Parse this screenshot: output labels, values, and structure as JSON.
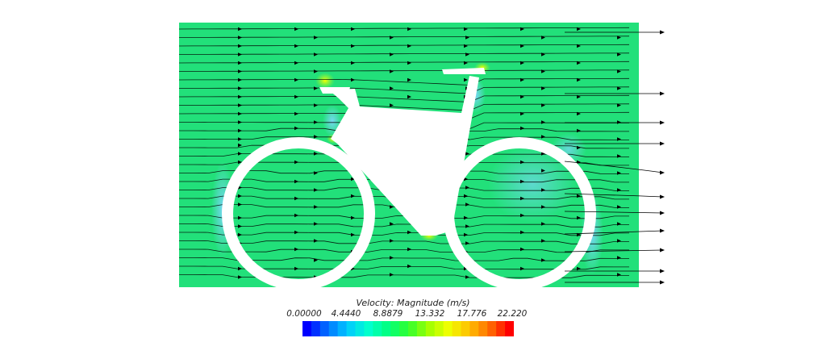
{
  "legend": {
    "title": "Velocity: Magnitude (m/s)",
    "ticks": [
      "0.00000",
      "4.4440",
      "8.8879",
      "13.332",
      "17.776",
      "22.220"
    ],
    "min": 0.0,
    "max": 22.22
  },
  "colors": {
    "field": "#22e07a",
    "frame": "#ffffff",
    "streamline": "#000000",
    "colormap": [
      "#0000ff",
      "#0070ff",
      "#00c8ff",
      "#00ffd0",
      "#00ff80",
      "#30ff30",
      "#a0ff00",
      "#f0ff00",
      "#ffc000",
      "#ff7000",
      "#ff0000"
    ]
  }
}
